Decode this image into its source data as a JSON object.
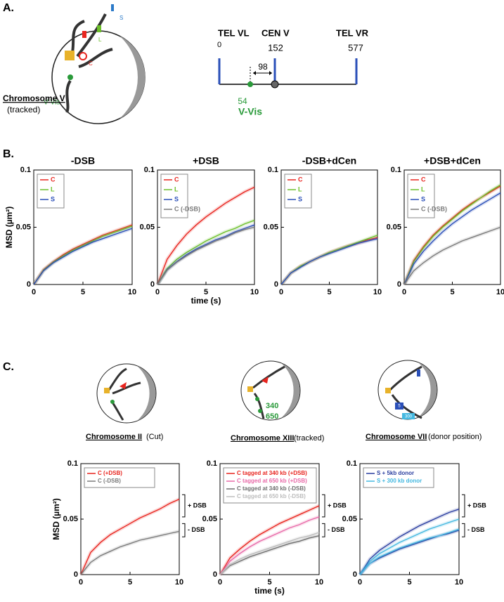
{
  "panel_labels": [
    "A.",
    "B.",
    "C."
  ],
  "diagram_a": {
    "chromosome": "Chromosome  V",
    "tracked": "(tracked)",
    "loci": [
      "C",
      "L",
      "S"
    ],
    "vvis": "V-Vis",
    "map": {
      "tel_vl": "TEL VL",
      "pos_tel_vl": "0",
      "cen": "CEN V",
      "pos_cen": "152",
      "tel_vr": "TEL VR",
      "pos_tel_vr": "577",
      "distance": "98",
      "pos_vvis": "54",
      "vvis": "V-Vis"
    }
  },
  "diagram_c": [
    {
      "title": "Chromosome II",
      "note": "(Cut)",
      "labels": []
    },
    {
      "title": "Chromosome XIII",
      "note": "(tracked)",
      "labels": [
        "340",
        "650"
      ]
    },
    {
      "title": "Chromosome VII",
      "note": "(donor position)",
      "labels": [
        "5",
        "300"
      ]
    }
  ],
  "chart_data": [
    {
      "type": "line",
      "title": "-DSB",
      "ylabel": "MSD (µm²)",
      "x": [
        0,
        1,
        2,
        3,
        4,
        5,
        6,
        7,
        8,
        9,
        10
      ],
      "xlim": [
        0,
        10
      ],
      "ylim": [
        0,
        0.1
      ],
      "xticks": [
        0,
        5,
        10
      ],
      "yticks": [
        0,
        0.05,
        0.1
      ],
      "series": [
        {
          "name": "C",
          "color": "#e8251f",
          "values": [
            0,
            0.013,
            0.02,
            0.026,
            0.031,
            0.035,
            0.039,
            0.043,
            0.046,
            0.049,
            0.052
          ]
        },
        {
          "name": "L",
          "color": "#6cbf2a",
          "values": [
            0,
            0.0125,
            0.0195,
            0.025,
            0.03,
            0.034,
            0.038,
            0.042,
            0.045,
            0.048,
            0.051
          ]
        },
        {
          "name": "S",
          "color": "#2a4fb8",
          "values": [
            0,
            0.012,
            0.019,
            0.024,
            0.029,
            0.033,
            0.037,
            0.04,
            0.043,
            0.046,
            0.049
          ]
        }
      ]
    },
    {
      "type": "line",
      "title": "+DSB",
      "xlabel": "time (s)",
      "x": [
        0,
        1,
        2,
        3,
        4,
        5,
        6,
        7,
        8,
        9,
        10
      ],
      "xlim": [
        0,
        10
      ],
      "ylim": [
        0,
        0.1
      ],
      "xticks": [
        0,
        5,
        10
      ],
      "yticks": [
        0,
        0.05,
        0.1
      ],
      "series": [
        {
          "name": "C",
          "color": "#e8251f",
          "values": [
            0,
            0.022,
            0.034,
            0.044,
            0.052,
            0.059,
            0.065,
            0.071,
            0.076,
            0.081,
            0.085
          ]
        },
        {
          "name": "L",
          "color": "#6cbf2a",
          "values": [
            0,
            0.014,
            0.022,
            0.028,
            0.033,
            0.038,
            0.042,
            0.046,
            0.049,
            0.053,
            0.056
          ]
        },
        {
          "name": "S",
          "color": "#2a4fb8",
          "values": [
            0,
            0.013,
            0.02,
            0.026,
            0.031,
            0.035,
            0.039,
            0.042,
            0.046,
            0.049,
            0.052
          ]
        },
        {
          "name": "C (-DSB)",
          "color": "#7a7a7a",
          "values": [
            0,
            0.0125,
            0.0195,
            0.025,
            0.03,
            0.034,
            0.038,
            0.041,
            0.045,
            0.048,
            0.05
          ]
        }
      ]
    },
    {
      "type": "line",
      "title": "-DSB+dCen",
      "x": [
        0,
        1,
        2,
        3,
        4,
        5,
        6,
        7,
        8,
        9,
        10
      ],
      "xlim": [
        0,
        10
      ],
      "ylim": [
        0,
        0.1
      ],
      "xticks": [
        0,
        5,
        10
      ],
      "yticks": [
        0,
        0.05,
        0.1
      ],
      "series": [
        {
          "name": "C",
          "color": "#e8251f",
          "values": [
            0,
            0.01,
            0.016,
            0.02,
            0.024,
            0.028,
            0.031,
            0.034,
            0.036,
            0.039,
            0.041
          ]
        },
        {
          "name": "L",
          "color": "#6cbf2a",
          "values": [
            0,
            0.01,
            0.016,
            0.02,
            0.024,
            0.028,
            0.031,
            0.034,
            0.037,
            0.04,
            0.043
          ]
        },
        {
          "name": "S",
          "color": "#2a4fb8",
          "values": [
            0,
            0.01,
            0.015,
            0.02,
            0.024,
            0.027,
            0.03,
            0.033,
            0.036,
            0.038,
            0.04
          ]
        }
      ]
    },
    {
      "type": "line",
      "title": "+DSB+dCen",
      "x": [
        0,
        1,
        2,
        3,
        4,
        5,
        6,
        7,
        8,
        9,
        10
      ],
      "xlim": [
        0,
        10
      ],
      "ylim": [
        0,
        0.1
      ],
      "xticks": [
        0,
        5,
        10
      ],
      "yticks": [
        0,
        0.05,
        0.1
      ],
      "series": [
        {
          "name": "C",
          "color": "#e8251f",
          "values": [
            0,
            0.021,
            0.033,
            0.043,
            0.051,
            0.058,
            0.065,
            0.071,
            0.076,
            0.081,
            0.086
          ]
        },
        {
          "name": "L",
          "color": "#6cbf2a",
          "values": [
            0,
            0.02,
            0.032,
            0.042,
            0.05,
            0.057,
            0.064,
            0.07,
            0.076,
            0.082,
            0.087
          ]
        },
        {
          "name": "S",
          "color": "#2a4fb8",
          "values": [
            0,
            0.018,
            0.029,
            0.038,
            0.046,
            0.053,
            0.059,
            0.065,
            0.07,
            0.075,
            0.08
          ]
        },
        {
          "name": "C (-DSB)",
          "color": "#7a7a7a",
          "values": [
            0,
            0.012,
            0.019,
            0.025,
            0.03,
            0.034,
            0.038,
            0.041,
            0.044,
            0.047,
            0.05
          ]
        }
      ]
    },
    {
      "type": "line",
      "ylabel": "MSD (µm²)",
      "annotations": [
        "+ DSB",
        "- DSB"
      ],
      "x": [
        0,
        1,
        2,
        3,
        4,
        5,
        6,
        7,
        8,
        9,
        10
      ],
      "xlim": [
        0,
        10
      ],
      "ylim": [
        0,
        0.1
      ],
      "xticks": [
        0,
        5,
        10
      ],
      "yticks": [
        0,
        0.05,
        0.1
      ],
      "series": [
        {
          "name": "C (+DSB)",
          "color": "#e8251f",
          "values": [
            0,
            0.02,
            0.029,
            0.036,
            0.041,
            0.046,
            0.051,
            0.055,
            0.059,
            0.064,
            0.068
          ]
        },
        {
          "name": "C (-DSB)",
          "color": "#7a7a7a",
          "values": [
            0,
            0.011,
            0.017,
            0.021,
            0.025,
            0.028,
            0.031,
            0.033,
            0.035,
            0.037,
            0.039
          ]
        }
      ]
    },
    {
      "type": "line",
      "xlabel": "time (s)",
      "annotations": [
        "+ DSB",
        "- DSB"
      ],
      "x": [
        0,
        1,
        2,
        3,
        4,
        5,
        6,
        7,
        8,
        9,
        10
      ],
      "xlim": [
        0,
        10
      ],
      "ylim": [
        0,
        0.1
      ],
      "xticks": [
        0,
        5,
        10
      ],
      "yticks": [
        0,
        0.05,
        0.1
      ],
      "series": [
        {
          "name": "C tagged at 340 kb (+DSB)",
          "color": "#e8251f",
          "values": [
            0,
            0.015,
            0.023,
            0.03,
            0.036,
            0.041,
            0.046,
            0.05,
            0.054,
            0.058,
            0.062
          ]
        },
        {
          "name": "C tagged at 650 kb (+DSB)",
          "color": "#e86aa8",
          "values": [
            0,
            0.012,
            0.019,
            0.025,
            0.03,
            0.034,
            0.038,
            0.042,
            0.045,
            0.049,
            0.052
          ]
        },
        {
          "name": "C tagged at 340 kb (-DSB)",
          "color": "#6e6e6e",
          "values": [
            0,
            0.008,
            0.012,
            0.016,
            0.019,
            0.022,
            0.025,
            0.028,
            0.03,
            0.033,
            0.035
          ]
        },
        {
          "name": "C tagged at 650 kb (-DSB)",
          "color": "#bdbdbd",
          "values": [
            0,
            0.009,
            0.014,
            0.018,
            0.021,
            0.024,
            0.027,
            0.03,
            0.033,
            0.035,
            0.038
          ]
        }
      ]
    },
    {
      "type": "line",
      "annotations": [
        "+ DSB",
        "- DSB"
      ],
      "x": [
        0,
        1,
        2,
        3,
        4,
        5,
        6,
        7,
        8,
        9,
        10
      ],
      "xlim": [
        0,
        10
      ],
      "ylim": [
        0,
        0.1
      ],
      "xticks": [
        0,
        5,
        10
      ],
      "yticks": [
        0,
        0.05,
        0.1
      ],
      "series": [
        {
          "name": "S + 5kb donor",
          "color": "#2b3fa0",
          "values": [
            0,
            0.014,
            0.022,
            0.028,
            0.034,
            0.039,
            0.044,
            0.048,
            0.052,
            0.056,
            0.059
          ]
        },
        {
          "name": "S + 300 kb donor",
          "color": "#44b8e0",
          "values": [
            0,
            0.012,
            0.019,
            0.024,
            0.029,
            0.033,
            0.037,
            0.041,
            0.044,
            0.047,
            0.05
          ]
        },
        {
          "color": "#2b3fa0",
          "values": [
            0,
            0.01,
            0.015,
            0.019,
            0.023,
            0.026,
            0.029,
            0.032,
            0.035,
            0.037,
            0.04
          ]
        },
        {
          "color": "#44b8e0",
          "values": [
            0,
            0.01,
            0.016,
            0.02,
            0.024,
            0.027,
            0.03,
            0.033,
            0.035,
            0.038,
            0.041
          ]
        }
      ]
    }
  ]
}
